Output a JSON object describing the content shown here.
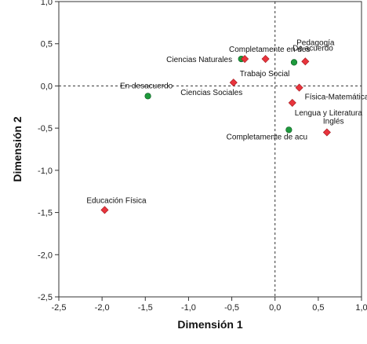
{
  "chart_data": {
    "type": "scatter",
    "xlabel": "Dimensión 1",
    "ylabel": "Dimensión 2",
    "xlim": [
      -2.5,
      1.0
    ],
    "ylim": [
      -2.5,
      1.0
    ],
    "x_ticks": [
      -2.5,
      -2.0,
      -1.5,
      -1.0,
      -0.5,
      0.0,
      0.5,
      1.0
    ],
    "y_ticks": [
      -2.5,
      -2.0,
      -1.5,
      -1.0,
      -0.5,
      0.0,
      0.5,
      1.0
    ],
    "x_tick_labels": [
      "-2,5",
      "-2,0",
      "-1,5",
      "-1,0",
      "-0,5",
      "0,0",
      "0,5",
      "1,0"
    ],
    "y_tick_labels": [
      "-2,5",
      "-2,0",
      "-1,5",
      "-1,0",
      "-0,5",
      "0,0",
      "0,5",
      "1,0"
    ],
    "reference_lines": {
      "x": 0.0,
      "y": 0.0,
      "style": "dashed"
    },
    "grid": false,
    "colors": {
      "circle": "#1e9a3c",
      "diamond": "#e8343c"
    },
    "series": [
      {
        "marker": "circle",
        "points": [
          {
            "label": "En desacuerdo",
            "x": -1.47,
            "y": -0.12
          },
          {
            "label": "Completamente en des",
            "x": -0.39,
            "y": 0.32
          },
          {
            "label": "De acuerdo",
            "x": 0.22,
            "y": 0.28
          },
          {
            "label": "Completamente de acu",
            "x": 0.16,
            "y": -0.52
          }
        ]
      },
      {
        "marker": "diamond",
        "points": [
          {
            "label": "Ciencias Naturales",
            "x": -0.35,
            "y": 0.32
          },
          {
            "label": "Trabajo Social",
            "x": -0.11,
            "y": 0.32
          },
          {
            "label": "Pedagogía",
            "x": 0.35,
            "y": 0.29
          },
          {
            "label": "Ciencias Sociales",
            "x": -0.48,
            "y": 0.04
          },
          {
            "label": "Física-Matemática",
            "x": 0.28,
            "y": -0.02
          },
          {
            "label": "Lengua y Literatura",
            "x": 0.2,
            "y": -0.2
          },
          {
            "label": "Inglés",
            "x": 0.6,
            "y": -0.55
          },
          {
            "label": "Educación Física",
            "x": -1.97,
            "y": -1.47
          }
        ]
      }
    ]
  }
}
